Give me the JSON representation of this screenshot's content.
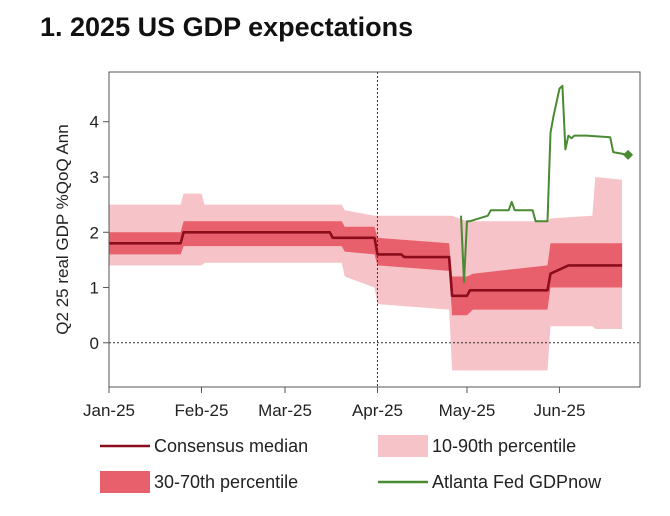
{
  "title": "1. 2025 US GDP expectations",
  "chart_data": {
    "type": "area",
    "ylabel": "Q2 25 real GDP %QoQ Ann",
    "xlabel": "",
    "ylim": [
      -0.8,
      4.9
    ],
    "yticks": [
      0,
      1,
      2,
      3,
      4
    ],
    "xlim": [
      "2025-01-01",
      "2025-06-28"
    ],
    "xticks": [
      {
        "date": "2025-01-01",
        "label": "Jan-25"
      },
      {
        "date": "2025-02-01",
        "label": "Feb-25"
      },
      {
        "date": "2025-03-01",
        "label": "Mar-25"
      },
      {
        "date": "2025-04-01",
        "label": "Apr-25"
      },
      {
        "date": "2025-05-01",
        "label": "May-25"
      },
      {
        "date": "2025-06-01",
        "label": "Jun-25"
      }
    ],
    "vline": "2025-04-01",
    "hline": 0,
    "legend": [
      {
        "label": "Consensus median",
        "kind": "line",
        "color": "#8b0d1c"
      },
      {
        "label": "10-90th percentile",
        "kind": "box",
        "color": "#f6c3c8"
      },
      {
        "label": "30-70th percentile",
        "kind": "box",
        "color": "#e8606b"
      },
      {
        "label": "Atlanta Fed GDPnow",
        "kind": "line",
        "color": "#4a8a32"
      }
    ],
    "series": [
      {
        "name": "10-90th percentile",
        "type": "band",
        "color": "#f6c3c8",
        "x": [
          "2025-01-01",
          "2025-01-25",
          "2025-01-26",
          "2025-02-01",
          "2025-02-02",
          "2025-03-20",
          "2025-03-21",
          "2025-03-31",
          "2025-04-01",
          "2025-04-25",
          "2025-04-26",
          "2025-05-01",
          "2025-05-03",
          "2025-05-28",
          "2025-05-29",
          "2025-06-12",
          "2025-06-13",
          "2025-06-22"
        ],
        "lo": [
          1.4,
          1.4,
          1.4,
          1.4,
          1.45,
          1.45,
          1.2,
          1.0,
          0.7,
          0.6,
          -0.5,
          -0.5,
          -0.5,
          -0.5,
          0.3,
          0.3,
          0.25,
          0.25
        ],
        "hi": [
          2.5,
          2.5,
          2.7,
          2.7,
          2.5,
          2.5,
          2.4,
          2.3,
          2.3,
          2.3,
          2.3,
          2.2,
          2.2,
          2.2,
          2.25,
          2.3,
          3.0,
          2.95
        ]
      },
      {
        "name": "30-70th percentile",
        "type": "band",
        "color": "#e8606b",
        "x": [
          "2025-01-01",
          "2025-01-25",
          "2025-01-26",
          "2025-03-20",
          "2025-03-21",
          "2025-03-31",
          "2025-04-01",
          "2025-04-25",
          "2025-04-26",
          "2025-05-01",
          "2025-05-03",
          "2025-05-28",
          "2025-05-29",
          "2025-06-22"
        ],
        "lo": [
          1.6,
          1.6,
          1.75,
          1.75,
          1.65,
          1.6,
          1.4,
          1.3,
          0.5,
          0.5,
          0.6,
          0.6,
          1.0,
          1.0
        ],
        "hi": [
          2.0,
          2.0,
          2.2,
          2.2,
          2.1,
          2.1,
          1.9,
          1.8,
          1.2,
          1.2,
          1.25,
          1.4,
          1.8,
          1.8
        ]
      },
      {
        "name": "Consensus median",
        "type": "line",
        "color": "#8b0d1c",
        "x": [
          "2025-01-01",
          "2025-01-25",
          "2025-01-26",
          "2025-03-16",
          "2025-03-17",
          "2025-03-31",
          "2025-04-01",
          "2025-04-09",
          "2025-04-10",
          "2025-04-25",
          "2025-04-26",
          "2025-05-01",
          "2025-05-02",
          "2025-05-28",
          "2025-05-29",
          "2025-06-04",
          "2025-06-22"
        ],
        "y": [
          1.8,
          1.8,
          2.0,
          2.0,
          1.9,
          1.9,
          1.6,
          1.6,
          1.55,
          1.55,
          0.85,
          0.85,
          0.95,
          0.95,
          1.25,
          1.4,
          1.4
        ]
      },
      {
        "name": "Atlanta Fed GDPnow",
        "type": "line",
        "color": "#4a8a32",
        "x": [
          "2025-04-29",
          "2025-04-30",
          "2025-05-01",
          "2025-05-02",
          "2025-05-08",
          "2025-05-09",
          "2025-05-15",
          "2025-05-16",
          "2025-05-17",
          "2025-05-23",
          "2025-05-24",
          "2025-05-27",
          "2025-05-28",
          "2025-05-29",
          "2025-05-30",
          "2025-06-01",
          "2025-06-02",
          "2025-06-03",
          "2025-06-04",
          "2025-06-05",
          "2025-06-06",
          "2025-06-10",
          "2025-06-18",
          "2025-06-19",
          "2025-06-24"
        ],
        "y": [
          2.3,
          1.1,
          2.2,
          2.2,
          2.3,
          2.4,
          2.4,
          2.55,
          2.4,
          2.4,
          2.2,
          2.2,
          2.2,
          3.8,
          4.1,
          4.6,
          4.65,
          3.5,
          3.75,
          3.7,
          3.75,
          3.75,
          3.72,
          3.45,
          3.4
        ]
      }
    ]
  }
}
